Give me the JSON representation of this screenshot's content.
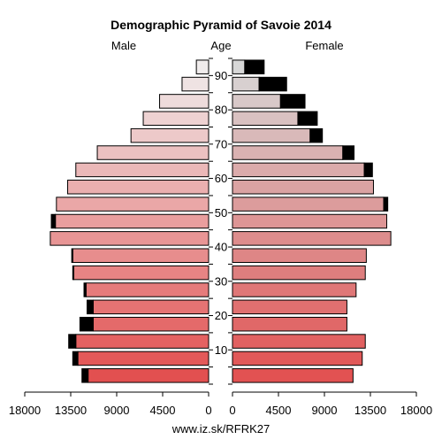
{
  "chart_data": {
    "type": "bar",
    "title": "Demographic Pyramid of Savoie 2014",
    "left_label": "Male",
    "center_label": "Age",
    "right_label": "Female",
    "footer": "www.iz.sk/RFRK27",
    "age_ticks": [
      "10",
      "20",
      "30",
      "40",
      "50",
      "60",
      "70",
      "80",
      "90"
    ],
    "x_ticks_left": [
      "18000",
      "13500",
      "9000",
      "4500",
      "0"
    ],
    "x_ticks_right": [
      "0",
      "4500",
      "9000",
      "13500",
      "18000"
    ],
    "xlim": [
      0,
      18000
    ],
    "categories": [
      "0-4",
      "5-9",
      "10-14",
      "15-19",
      "20-24",
      "25-29",
      "30-34",
      "35-39",
      "40-44",
      "45-49",
      "50-54",
      "55-59",
      "60-64",
      "65-69",
      "70-74",
      "75-79",
      "80-84",
      "85-89",
      "90-94"
    ],
    "series": [
      {
        "name": "Male",
        "base": [
          11800,
          12800,
          13000,
          11300,
          11300,
          12000,
          13200,
          13300,
          15500,
          15000,
          14900,
          13800,
          13000,
          10900,
          7600,
          6400,
          4800,
          2600,
          1200
        ],
        "excess": [
          600,
          500,
          700,
          1300,
          600,
          200,
          100,
          100,
          0,
          400,
          0,
          0,
          0,
          0,
          0,
          0,
          0,
          0,
          0
        ]
      },
      {
        "name": "Female",
        "base": [
          11800,
          12700,
          13000,
          11200,
          11200,
          12100,
          13000,
          13100,
          15500,
          15100,
          14800,
          13800,
          12900,
          10800,
          7600,
          6400,
          4700,
          2600,
          1200
        ],
        "excess": [
          0,
          0,
          0,
          0,
          0,
          0,
          0,
          0,
          0,
          0,
          400,
          0,
          800,
          1100,
          1200,
          1900,
          2400,
          2700,
          1900
        ]
      }
    ]
  }
}
